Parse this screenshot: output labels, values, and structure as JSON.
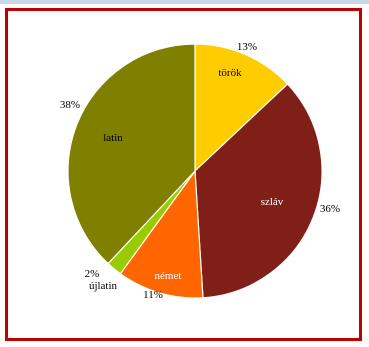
{
  "chart_data": {
    "type": "pie",
    "title": "",
    "slices": [
      {
        "name": "török",
        "value": 13,
        "pct_label": "13%",
        "color": "#ffcc00",
        "name_color": "#000000"
      },
      {
        "name": "szláv",
        "value": 36,
        "pct_label": "36%",
        "color": "#7f1f17",
        "name_color": "#ffffff"
      },
      {
        "name": "német",
        "value": 11,
        "pct_label": "11%",
        "color": "#ff6600",
        "name_color": "#ffffff"
      },
      {
        "name": "újlatin",
        "value": 2,
        "pct_label": "2%",
        "color": "#99cc00",
        "name_color": "#000000"
      },
      {
        "name": "latin",
        "value": 38,
        "pct_label": "38%",
        "color": "#808000",
        "name_color": "#000000"
      }
    ]
  },
  "colors": {
    "frame_border": "#c00000",
    "top_band": "#c7d7e8"
  }
}
